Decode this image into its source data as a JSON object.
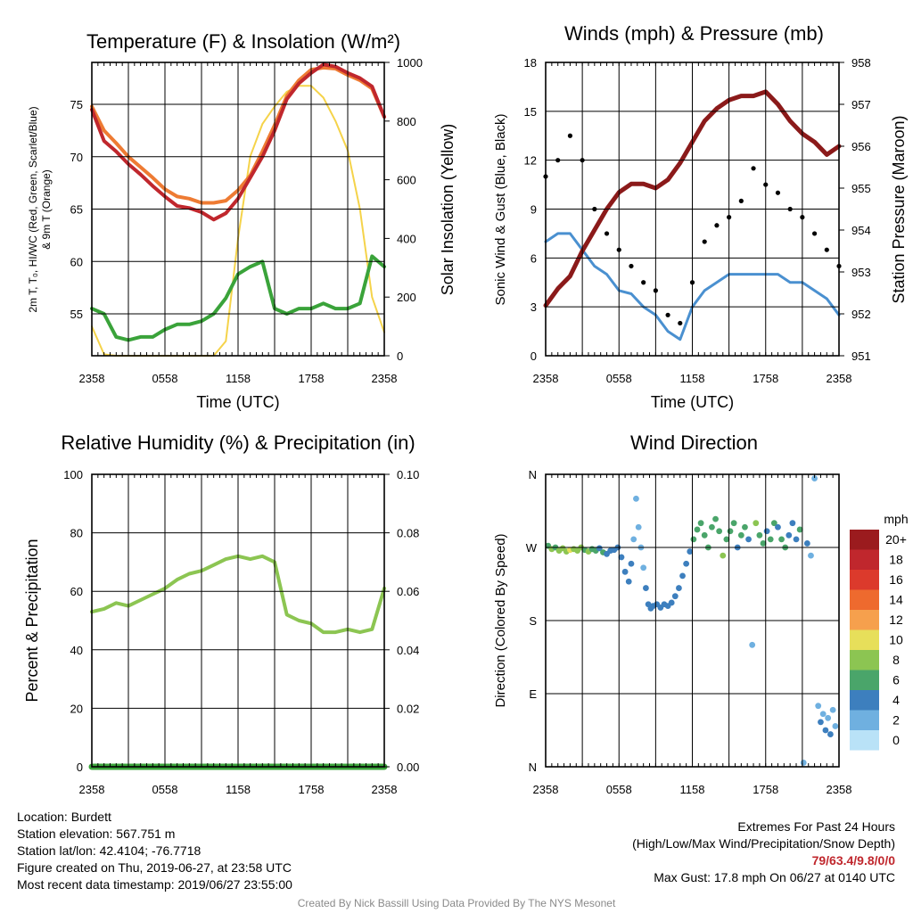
{
  "panels": {
    "temperature": {
      "title": "Temperature (F) & Insolation (W/m²)",
      "y_left_label_line1": "2m T, T₀, HI/WC (Red, Green, Scarlet/Blue)",
      "y_left_label_line2": "& 9m T (Orange)",
      "y_right_label": "Solar Insolation (Yellow)",
      "x_label": "Time (UTC)"
    },
    "winds": {
      "title": "Winds (mph) & Pressure (mb)",
      "y_left_label": "Sonic Wind & Gust (Blue, Black)",
      "y_right_label": "Station Pressure (Maroon)",
      "x_label": "Time (UTC)"
    },
    "humidity": {
      "title": "Relative Humidity (%) & Precipitation (in)",
      "y_left_label": "Percent & Precipitation"
    },
    "direction": {
      "title": "Wind Direction",
      "y_left_label": "Direction (Colored By Speed)",
      "legend_title": "mph",
      "legend_labels": [
        "20+",
        "18",
        "16",
        "14",
        "12",
        "10",
        "8",
        "6",
        "4",
        "2",
        "0"
      ],
      "legend_colors": [
        "#9b1b1e",
        "#c0272d",
        "#dc3a2c",
        "#ee6a2e",
        "#f6a04d",
        "#e7df5a",
        "#8cc552",
        "#4aa56a",
        "#3d7fbe",
        "#6fb0e0",
        "#b9e2f7"
      ]
    }
  },
  "info": {
    "location": "Location: Burdett",
    "elevation": "Station elevation: 567.751 m",
    "latlon": "Station lat/lon: 42.4104; -76.7718",
    "created": "Figure created on Thu, 2019-06-27, at 23:58 UTC",
    "recent": "Most recent data timestamp: 2019/06/27 23:55:00",
    "extremes_title": "Extremes For Past 24 Hours",
    "extremes_subtitle": "(High/Low/Max Wind/Precipitation/Snow Depth)",
    "extremes_values": "79/63.4/9.8/0/0",
    "max_gust": "Max Gust: 17.8 mph On 06/27 at 0140 UTC",
    "credit": "Created By Nick Bassill Using Data Provided By The NYS Mesonet"
  },
  "chart_data": [
    {
      "type": "line",
      "x_ticks": [
        "2358",
        "0558",
        "1158",
        "1758",
        "2358"
      ],
      "x": [
        0,
        1,
        2,
        3,
        4,
        5,
        6,
        7,
        8,
        9,
        10,
        11,
        12,
        13,
        14,
        15,
        16,
        17,
        18,
        19,
        20,
        21,
        22,
        23,
        24
      ],
      "ylim": [
        51,
        79
      ],
      "y_ticks": [
        55,
        60,
        65,
        70,
        75
      ],
      "y2lim": [
        0,
        1000
      ],
      "y2_ticks": [
        0,
        200,
        400,
        600,
        800,
        1000
      ],
      "series": [
        {
          "name": "2m T",
          "color": "#c0272d",
          "axis": "left",
          "values": [
            74.5,
            71.5,
            70.5,
            69.3,
            68.3,
            67.2,
            66.2,
            65.3,
            65.1,
            64.7,
            64.0,
            64.6,
            66.0,
            68.0,
            70.0,
            72.5,
            75.5,
            77.0,
            78.0,
            78.8,
            78.6,
            78.0,
            77.5,
            76.7,
            73.8
          ]
        },
        {
          "name": "9m T",
          "color": "#ee7b33",
          "axis": "left",
          "values": [
            74.8,
            72.5,
            71.3,
            70.0,
            69.0,
            68.0,
            66.9,
            66.2,
            66.0,
            65.6,
            65.6,
            65.8,
            66.8,
            68.2,
            70.5,
            73.0,
            75.8,
            77.3,
            78.3,
            78.5,
            78.4,
            77.8,
            77.3,
            76.5,
            73.8
          ]
        },
        {
          "name": "T0",
          "color": "#3aa33a",
          "axis": "left",
          "values": [
            55.5,
            55.0,
            52.8,
            52.5,
            52.8,
            52.8,
            53.5,
            54.0,
            54.0,
            54.3,
            55.0,
            56.5,
            58.8,
            59.5,
            60.0,
            55.5,
            55.0,
            55.5,
            55.5,
            56.0,
            55.5,
            55.5,
            56.0,
            60.5,
            59.5
          ]
        },
        {
          "name": "Solar Insolation",
          "color": "#f5d34a",
          "axis": "right",
          "values": [
            100,
            5,
            0,
            0,
            0,
            0,
            0,
            0,
            0,
            0,
            0,
            50,
            400,
            680,
            790,
            850,
            900,
            920,
            920,
            880,
            800,
            700,
            500,
            200,
            80
          ]
        }
      ]
    },
    {
      "type": "line",
      "x_ticks": [
        "2358",
        "0558",
        "1158",
        "1758",
        "2358"
      ],
      "x": [
        0,
        1,
        2,
        3,
        4,
        5,
        6,
        7,
        8,
        9,
        10,
        11,
        12,
        13,
        14,
        15,
        16,
        17,
        18,
        19,
        20,
        21,
        22,
        23,
        24
      ],
      "ylim": [
        0,
        18
      ],
      "y_ticks": [
        0,
        3,
        6,
        9,
        12,
        15,
        18
      ],
      "y2lim": [
        951,
        958
      ],
      "y2_ticks": [
        951,
        952,
        953,
        954,
        955,
        956,
        957,
        958
      ],
      "series": [
        {
          "name": "Sonic Wind",
          "color": "#4a90d0",
          "axis": "left",
          "values": [
            7.0,
            7.5,
            7.5,
            6.5,
            5.5,
            5.0,
            4.0,
            3.8,
            3.0,
            2.5,
            1.5,
            1.0,
            3.0,
            4.0,
            4.5,
            5.0,
            5.0,
            5.0,
            5.0,
            5.0,
            4.5,
            4.5,
            4.0,
            3.5,
            2.5
          ]
        },
        {
          "name": "Gust",
          "color": "#000000",
          "axis": "left",
          "values": [
            11.0,
            12.0,
            13.5,
            12.0,
            9.0,
            7.5,
            6.5,
            5.5,
            4.5,
            4.0,
            2.5,
            2.0,
            4.5,
            7.0,
            8.0,
            8.5,
            9.5,
            11.5,
            10.5,
            10.0,
            9.0,
            8.5,
            7.5,
            6.5,
            5.5
          ]
        },
        {
          "name": "Station Pressure",
          "color": "#8b1a1a",
          "axis": "right",
          "values": [
            952.2,
            952.6,
            952.9,
            953.5,
            954.0,
            954.5,
            954.9,
            955.1,
            955.1,
            955.0,
            955.2,
            955.6,
            956.1,
            956.6,
            956.9,
            957.1,
            957.2,
            957.2,
            957.3,
            957.0,
            956.6,
            956.3,
            956.1,
            955.8,
            956.0
          ]
        }
      ]
    },
    {
      "type": "line",
      "x_ticks": [
        "2358",
        "0558",
        "1158",
        "1758",
        "2358"
      ],
      "x": [
        0,
        1,
        2,
        3,
        4,
        5,
        6,
        7,
        8,
        9,
        10,
        11,
        12,
        13,
        14,
        15,
        16,
        17,
        18,
        19,
        20,
        21,
        22,
        23,
        24
      ],
      "ylim": [
        0,
        100
      ],
      "y_ticks": [
        0,
        20,
        40,
        60,
        80,
        100
      ],
      "y2lim": [
        0,
        0.1
      ],
      "y2_ticks": [
        "0.00",
        "0.02",
        "0.04",
        "0.06",
        "0.08",
        "0.10"
      ],
      "series": [
        {
          "name": "Relative Humidity",
          "color": "#8cc552",
          "axis": "left",
          "values": [
            53,
            54,
            56,
            55,
            57,
            59,
            61,
            64,
            66,
            67,
            69,
            71,
            72,
            71,
            72,
            70,
            52,
            50,
            49,
            46,
            46,
            47,
            46,
            47,
            61
          ]
        },
        {
          "name": "Precipitation",
          "color": "#3aa33a",
          "axis": "right",
          "values": [
            0,
            0,
            0,
            0,
            0,
            0,
            0,
            0,
            0,
            0,
            0,
            0,
            0,
            0,
            0,
            0,
            0,
            0,
            0,
            0,
            0,
            0,
            0,
            0,
            0
          ]
        }
      ]
    },
    {
      "type": "scatter",
      "x_ticks": [
        "2358",
        "0558",
        "1158",
        "1758",
        "2358"
      ],
      "y_ticks": [
        "N",
        "E",
        "S",
        "W",
        "N"
      ],
      "ylim": [
        0,
        360
      ],
      "points": [
        {
          "x": 0.2,
          "dir": 272,
          "spd": 5
        },
        {
          "x": 0.5,
          "dir": 268,
          "spd": 7
        },
        {
          "x": 0.8,
          "dir": 270,
          "spd": 6
        },
        {
          "x": 1.1,
          "dir": 266,
          "spd": 7
        },
        {
          "x": 1.4,
          "dir": 269,
          "spd": 8
        },
        {
          "x": 1.7,
          "dir": 265,
          "spd": 7
        },
        {
          "x": 2.0,
          "dir": 267,
          "spd": 9
        },
        {
          "x": 2.3,
          "dir": 268,
          "spd": 7
        },
        {
          "x": 2.6,
          "dir": 266,
          "spd": 8
        },
        {
          "x": 2.9,
          "dir": 270,
          "spd": 7
        },
        {
          "x": 3.2,
          "dir": 267,
          "spd": 6
        },
        {
          "x": 3.5,
          "dir": 265,
          "spd": 7
        },
        {
          "x": 3.8,
          "dir": 268,
          "spd": 6
        },
        {
          "x": 4.1,
          "dir": 266,
          "spd": 5
        },
        {
          "x": 4.4,
          "dir": 269,
          "spd": 4
        },
        {
          "x": 4.7,
          "dir": 264,
          "spd": 5
        },
        {
          "x": 5.0,
          "dir": 262,
          "spd": 4
        },
        {
          "x": 5.3,
          "dir": 266,
          "spd": 4
        },
        {
          "x": 5.6,
          "dir": 267,
          "spd": 3
        },
        {
          "x": 5.9,
          "dir": 270,
          "spd": 4
        },
        {
          "x": 6.2,
          "dir": 258,
          "spd": 3
        },
        {
          "x": 6.5,
          "dir": 240,
          "spd": 3
        },
        {
          "x": 6.8,
          "dir": 228,
          "spd": 3
        },
        {
          "x": 7.0,
          "dir": 250,
          "spd": 3
        },
        {
          "x": 7.2,
          "dir": 280,
          "spd": 2
        },
        {
          "x": 7.4,
          "dir": 330,
          "spd": 1
        },
        {
          "x": 7.6,
          "dir": 295,
          "spd": 1
        },
        {
          "x": 7.8,
          "dir": 270,
          "spd": 2
        },
        {
          "x": 8.0,
          "dir": 245,
          "spd": 2
        },
        {
          "x": 8.2,
          "dir": 220,
          "spd": 3
        },
        {
          "x": 8.4,
          "dir": 200,
          "spd": 3
        },
        {
          "x": 8.6,
          "dir": 195,
          "spd": 3
        },
        {
          "x": 8.8,
          "dir": 198,
          "spd": 3
        },
        {
          "x": 9.1,
          "dir": 200,
          "spd": 3
        },
        {
          "x": 9.4,
          "dir": 196,
          "spd": 3
        },
        {
          "x": 9.7,
          "dir": 200,
          "spd": 4
        },
        {
          "x": 10.0,
          "dir": 198,
          "spd": 3
        },
        {
          "x": 10.3,
          "dir": 202,
          "spd": 4
        },
        {
          "x": 10.6,
          "dir": 210,
          "spd": 4
        },
        {
          "x": 10.9,
          "dir": 220,
          "spd": 4
        },
        {
          "x": 11.2,
          "dir": 235,
          "spd": 4
        },
        {
          "x": 11.5,
          "dir": 250,
          "spd": 4
        },
        {
          "x": 11.8,
          "dir": 265,
          "spd": 4
        },
        {
          "x": 12.1,
          "dir": 280,
          "spd": 5
        },
        {
          "x": 12.4,
          "dir": 292,
          "spd": 5
        },
        {
          "x": 12.7,
          "dir": 300,
          "spd": 6
        },
        {
          "x": 13.0,
          "dir": 285,
          "spd": 5
        },
        {
          "x": 13.3,
          "dir": 270,
          "spd": 6
        },
        {
          "x": 13.6,
          "dir": 295,
          "spd": 5
        },
        {
          "x": 13.9,
          "dir": 305,
          "spd": 6
        },
        {
          "x": 14.2,
          "dir": 290,
          "spd": 5
        },
        {
          "x": 14.5,
          "dir": 260,
          "spd": 8
        },
        {
          "x": 14.8,
          "dir": 280,
          "spd": 6
        },
        {
          "x": 15.1,
          "dir": 290,
          "spd": 5
        },
        {
          "x": 15.4,
          "dir": 300,
          "spd": 6
        },
        {
          "x": 15.7,
          "dir": 270,
          "spd": 4
        },
        {
          "x": 16.0,
          "dir": 285,
          "spd": 5
        },
        {
          "x": 16.3,
          "dir": 295,
          "spd": 6
        },
        {
          "x": 16.6,
          "dir": 280,
          "spd": 4
        },
        {
          "x": 16.9,
          "dir": 150,
          "spd": 2
        },
        {
          "x": 17.2,
          "dir": 300,
          "spd": 7
        },
        {
          "x": 17.5,
          "dir": 285,
          "spd": 6
        },
        {
          "x": 17.8,
          "dir": 275,
          "spd": 5
        },
        {
          "x": 18.1,
          "dir": 290,
          "spd": 4
        },
        {
          "x": 18.4,
          "dir": 280,
          "spd": 6
        },
        {
          "x": 18.7,
          "dir": 300,
          "spd": 5
        },
        {
          "x": 19.0,
          "dir": 295,
          "spd": 4
        },
        {
          "x": 19.3,
          "dir": 280,
          "spd": 5
        },
        {
          "x": 19.6,
          "dir": 270,
          "spd": 6
        },
        {
          "x": 19.9,
          "dir": 285,
          "spd": 4
        },
        {
          "x": 20.2,
          "dir": 300,
          "spd": 3
        },
        {
          "x": 20.5,
          "dir": 280,
          "spd": 4
        },
        {
          "x": 20.8,
          "dir": 292,
          "spd": 5
        },
        {
          "x": 21.1,
          "dir": 5,
          "spd": 2
        },
        {
          "x": 21.4,
          "dir": 275,
          "spd": 3
        },
        {
          "x": 21.7,
          "dir": 260,
          "spd": 2
        },
        {
          "x": 22.0,
          "dir": 355,
          "spd": 1
        },
        {
          "x": 22.3,
          "dir": 75,
          "spd": 2
        },
        {
          "x": 22.5,
          "dir": 55,
          "spd": 3
        },
        {
          "x": 22.7,
          "dir": 65,
          "spd": 2
        },
        {
          "x": 22.9,
          "dir": 45,
          "spd": 3
        },
        {
          "x": 23.1,
          "dir": 60,
          "spd": 2
        },
        {
          "x": 23.3,
          "dir": 40,
          "spd": 3
        },
        {
          "x": 23.5,
          "dir": 70,
          "spd": 2
        },
        {
          "x": 23.7,
          "dir": 50,
          "spd": 2
        }
      ]
    }
  ]
}
